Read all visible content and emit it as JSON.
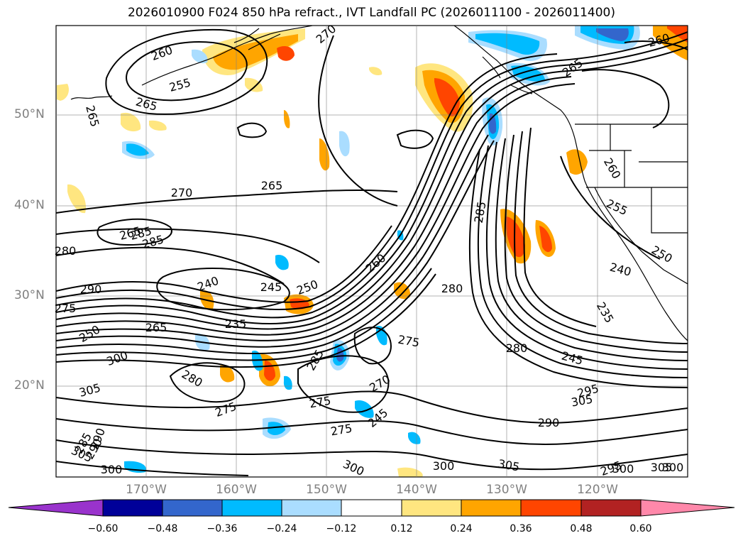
{
  "title": "2026010900 F024 850 hPa refract., IVT Landfall PC (2026011100 - 2026011400)",
  "latitude_labels": [
    "50°N",
    "40°N",
    "30°N",
    "20°N"
  ],
  "longitude_labels": [
    "170°W",
    "160°W",
    "150°W",
    "140°W",
    "130°W",
    "120°W"
  ],
  "colorbar": {
    "colors": [
      "#9933cc",
      "#000099",
      "#3366cc",
      "#00bbff",
      "#aaddff",
      "#ffffff",
      "#ffe680",
      "#ffa500",
      "#ff4500",
      "#b22222",
      "#ff88aa"
    ],
    "tick_labels": [
      "−0.60",
      "−0.48",
      "−0.36",
      "−0.24",
      "−0.12",
      "0.12",
      "0.24",
      "0.36",
      "0.48",
      "0.60"
    ]
  },
  "contour_labels": [
    "270",
    "260",
    "255",
    "265",
    "265",
    "260",
    "265",
    "260",
    "270",
    "265",
    "255",
    "250",
    "240",
    "235",
    "285",
    "265",
    "285",
    "280",
    "290",
    "275",
    "245",
    "250",
    "240",
    "260",
    "280",
    "245",
    "235",
    "265",
    "250",
    "300",
    "305",
    "280",
    "275",
    "285",
    "270",
    "275",
    "275",
    "280",
    "245",
    "290",
    "305",
    "295",
    "300",
    "305",
    "300",
    "290",
    "275",
    "300",
    "285",
    "290",
    "295",
    "305",
    "300",
    "305",
    "300",
    "285"
  ]
}
